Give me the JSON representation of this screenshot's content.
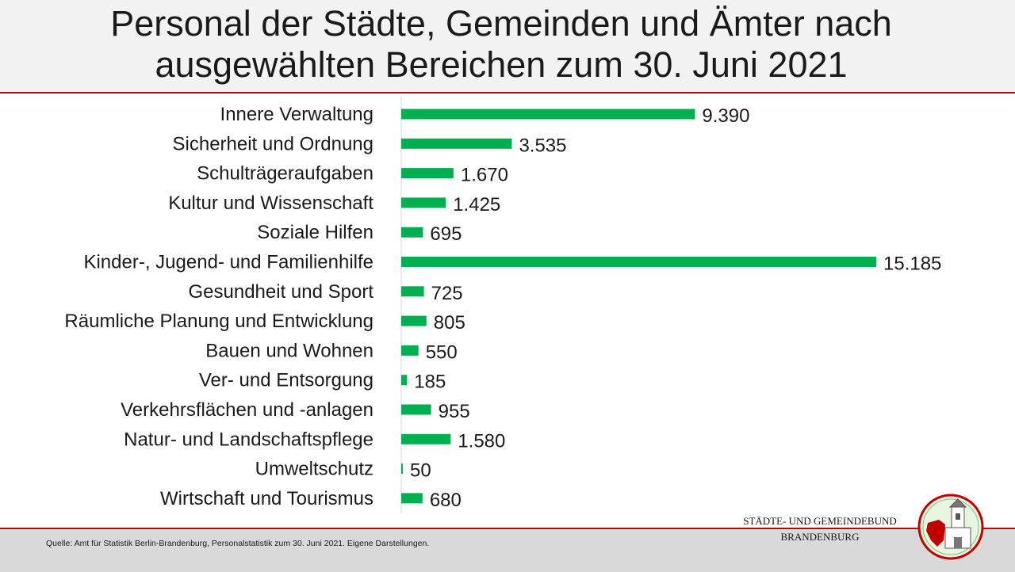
{
  "header": {
    "title_line1": "Personal der Städte, Gemeinden und Ämter nach",
    "title_line2": "ausgewählten Bereichen zum 30. Juni 2021"
  },
  "chart_data": {
    "type": "bar",
    "orientation": "horizontal",
    "bar_color": "#00b050",
    "title": "Personal der Städte, Gemeinden und Ämter nach ausgewählten Bereichen zum 30. Juni 2021",
    "categories": [
      "Innere Verwaltung",
      "Sicherheit und Ordnung",
      "Schulträgeraufgaben",
      "Kultur und Wissenschaft",
      "Soziale Hilfen",
      "Kinder-, Jugend- und Familienhilfe",
      "Gesundheit und Sport",
      "Räumliche Planung und Entwicklung",
      "Bauen und Wohnen",
      "Ver- und Entsorgung",
      "Verkehrsflächen und -anlagen",
      "Natur- und Landschaftspflege",
      "Umweltschutz",
      "Wirtschaft und Tourismus"
    ],
    "values": [
      9390,
      3535,
      1670,
      1425,
      695,
      15185,
      725,
      805,
      550,
      185,
      955,
      1580,
      50,
      680
    ],
    "value_labels": [
      "9.390",
      "3.535",
      "1.670",
      "1.425",
      "695",
      "15.185",
      "725",
      "805",
      "550",
      "185",
      "955",
      "1.580",
      "50",
      "680"
    ],
    "xlim": [
      0,
      15185
    ],
    "grid": false,
    "legend": "none"
  },
  "footer": {
    "source": "Quelle: Amt für Statistik Berlin-Brandenburg, Personalstatistik zum 30. Juni 2021. Eigene Darstellungen.",
    "org_line1": "STÄDTE-  UND GEMEINDEBUND",
    "org_line2": "BRANDENBURG"
  },
  "logo": {
    "icon": "coat-of-arms-icon",
    "ring_color": "#c00000",
    "bg_color": "#e8f5e0",
    "eagle_color": "#c00000"
  }
}
